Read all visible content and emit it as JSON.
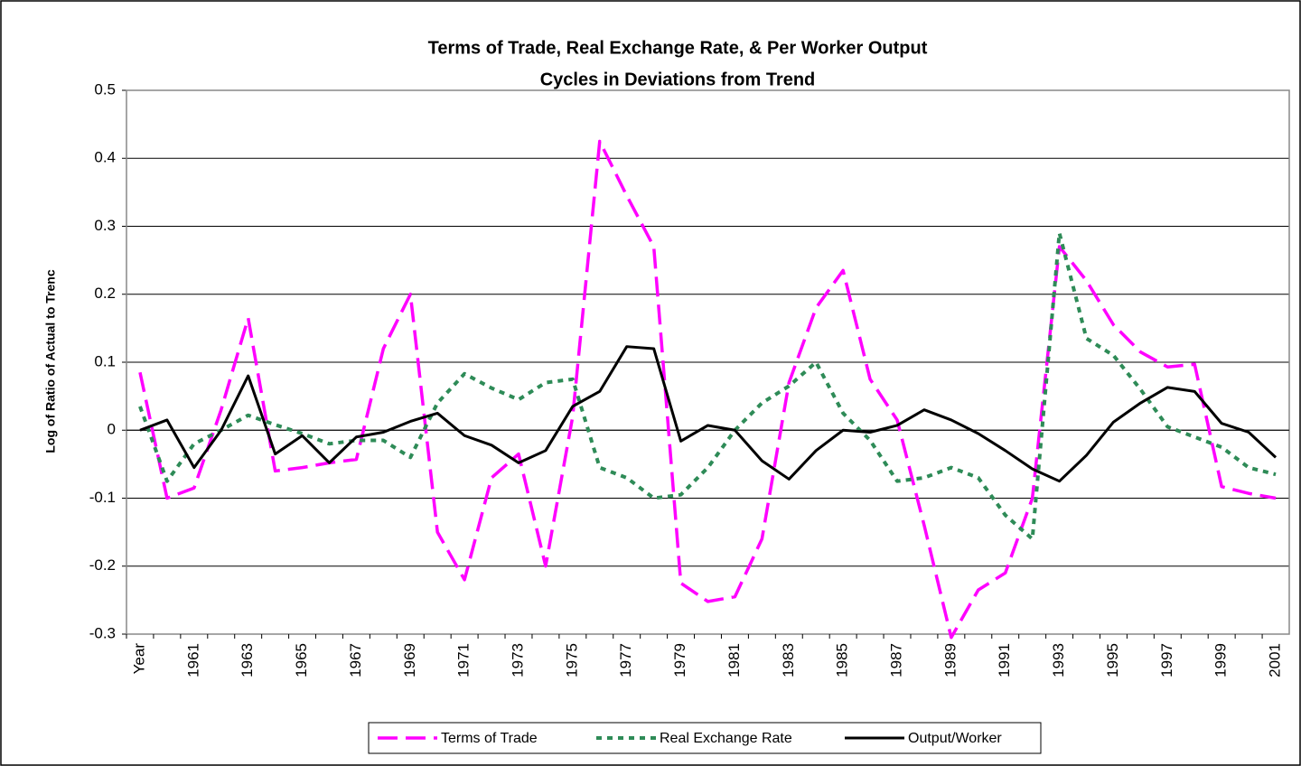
{
  "chart_data": {
    "type": "line",
    "title": "Terms of Trade, Real Exchange Rate, & Per Worker Output",
    "subtitle": "Cycles in Deviations from Trend",
    "y_label": "Log of Ratio of Actual to Trenc",
    "categories": [
      "Year",
      null,
      "1961",
      null,
      "1963",
      null,
      "1965",
      null,
      "1967",
      null,
      "1969",
      null,
      "1971",
      null,
      "1973",
      null,
      "1975",
      null,
      "1977",
      null,
      "1979",
      null,
      "1981",
      null,
      "1983",
      null,
      "1985",
      null,
      "1987",
      null,
      "1989",
      null,
      "1991",
      null,
      "1993",
      null,
      "1995",
      null,
      "1997",
      null,
      "1999",
      null,
      "2001"
    ],
    "series": [
      {
        "name": "Terms of Trade",
        "color": "#ff00ff",
        "dash": "long-dash",
        "values": [
          0.085,
          -0.1,
          -0.085,
          0.03,
          0.165,
          -0.06,
          -0.055,
          -0.048,
          -0.043,
          0.12,
          0.2,
          -0.15,
          -0.22,
          -0.07,
          -0.035,
          -0.2,
          0.02,
          0.425,
          0.345,
          0.27,
          -0.225,
          -0.252,
          -0.245,
          -0.16,
          0.07,
          0.18,
          0.235,
          0.075,
          0.015,
          -0.14,
          -0.305,
          -0.235,
          -0.21,
          -0.1,
          0.27,
          0.22,
          0.155,
          0.115,
          0.093,
          0.097,
          -0.083,
          -0.093,
          -0.1
        ]
      },
      {
        "name": "Real Exchange Rate",
        "color": "#2e8b57",
        "dash": "dot",
        "values": [
          0.035,
          -0.075,
          -0.02,
          0.0,
          0.022,
          0.008,
          -0.005,
          -0.02,
          -0.015,
          -0.015,
          -0.04,
          0.04,
          0.083,
          0.062,
          0.045,
          0.07,
          0.075,
          -0.055,
          -0.07,
          -0.1,
          -0.095,
          -0.055,
          0.0,
          0.04,
          0.065,
          0.1,
          0.025,
          -0.015,
          -0.075,
          -0.07,
          -0.055,
          -0.07,
          -0.125,
          -0.16,
          0.29,
          0.135,
          0.11,
          0.06,
          0.005,
          -0.01,
          -0.025,
          -0.055,
          -0.065
        ]
      },
      {
        "name": "Output/Worker",
        "color": "#000000",
        "dash": "solid",
        "values": [
          0,
          0.015,
          -0.055,
          0.0,
          0.08,
          -0.035,
          -0.008,
          -0.048,
          -0.01,
          -0.003,
          0.013,
          0.025,
          -0.008,
          -0.022,
          -0.048,
          -0.03,
          0.035,
          0.057,
          0.123,
          0.12,
          -0.016,
          0.007,
          0.0,
          -0.045,
          -0.072,
          -0.03,
          0.0,
          -0.003,
          0.007,
          0.03,
          0.015,
          -0.005,
          -0.03,
          -0.057,
          -0.075,
          -0.037,
          0.012,
          0.04,
          0.063,
          0.057,
          0.01,
          -0.003,
          -0.04
        ]
      }
    ],
    "ylim": [
      -0.3,
      0.5
    ],
    "yticks": [
      -0.3,
      -0.2,
      -0.1,
      0,
      0.1,
      0.2,
      0.3,
      0.4,
      0.5
    ],
    "grid": true,
    "legend": "bottom"
  }
}
